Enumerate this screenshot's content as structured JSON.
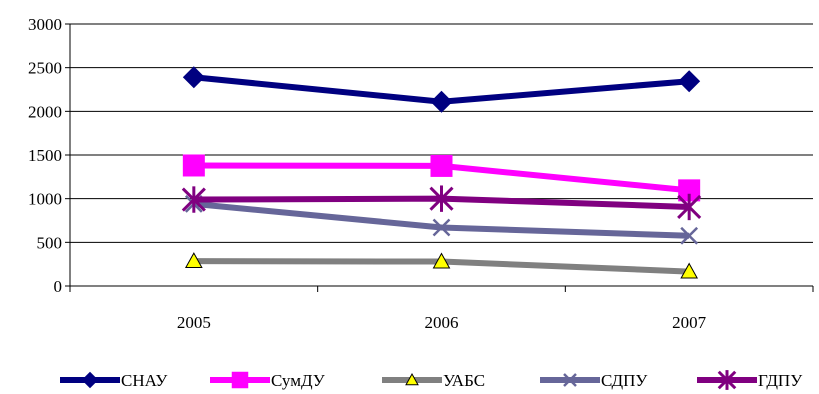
{
  "chart_data": {
    "type": "line",
    "title": "",
    "xlabel": "",
    "ylabel": "",
    "categories": [
      "2005",
      "2006",
      "2007"
    ],
    "ylim": [
      0,
      3000
    ],
    "yticks": [
      0,
      500,
      1000,
      1500,
      2000,
      2500,
      3000
    ],
    "grid": "horizontal",
    "legend_position": "bottom",
    "series": [
      {
        "name": "СНАУ",
        "color": "#000080",
        "marker": "diamond",
        "values": [
          2390,
          2110,
          2345
        ]
      },
      {
        "name": "СумДУ",
        "color": "#FF00FF",
        "marker": "square",
        "values": [
          1380,
          1375,
          1095
        ]
      },
      {
        "name": "УАБС",
        "color": "#808080",
        "marker": "triangle",
        "values": [
          285,
          280,
          165
        ]
      },
      {
        "name": "СДПУ",
        "color": "#666699",
        "marker": "x",
        "values": [
          940,
          670,
          575
        ]
      },
      {
        "name": "ГДПУ",
        "color": "#800080",
        "marker": "asterisk",
        "values": [
          990,
          1000,
          905
        ]
      }
    ]
  }
}
